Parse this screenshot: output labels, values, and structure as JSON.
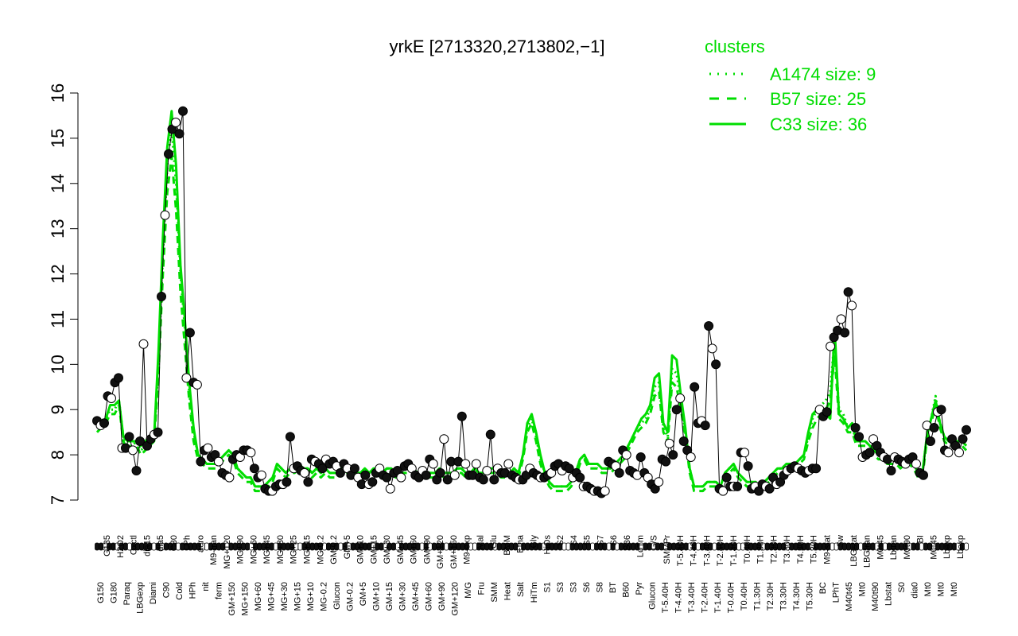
{
  "chart_data": {
    "type": "line",
    "title": "yrkE [2713320,2713802,−1]",
    "xlabel": "",
    "ylabel": "",
    "ylim": [
      7,
      16
    ],
    "yticks": [
      7,
      8,
      9,
      10,
      11,
      12,
      13,
      14,
      15,
      16
    ],
    "grid": false,
    "xtick_labels_row1": [
      "G150",
      "G180",
      "Paraq",
      "LBGexp",
      "Diami",
      "C90",
      "Cold",
      "HPh",
      "nit",
      "ferm",
      "GM+150",
      "MG+150",
      "MG+60",
      "MG+45",
      "MG+30",
      "MG+15",
      "MG+10",
      "MG-0.2",
      "Glucon",
      "GM-0.2",
      "GM+5",
      "GM+10",
      "GM+15",
      "GM+30",
      "GM+45",
      "GM+60",
      "GM+90",
      "GM+120",
      "M/G",
      "Fru",
      "SMM",
      "Heat",
      "Salt",
      "HiTm",
      "S1",
      "S3",
      "S3",
      "S6",
      "S8",
      "BT",
      "B60",
      "Pyr",
      "Glucon",
      "T-5.40H",
      "T-4.40H",
      "T-3.40H",
      "T-2.40H",
      "T-1.40H",
      "T-0.40H",
      "T0.40H",
      "T1.30H",
      "T2.30H",
      "T3.30H",
      "T4.30H",
      "T5.30H",
      "BC",
      "LPhT",
      "M40t45",
      "Mt0",
      "M40t90",
      "Lbstat",
      "S0",
      "dia0",
      "Mt0",
      "Mt0",
      "Mt0"
    ],
    "xtick_labels_row2": [
      "G135",
      "H2O2",
      "Oxctl",
      "dia15",
      "dia5",
      "C30",
      "LPh",
      "aero",
      "M9-tran",
      "MG+120",
      "MG+90",
      "MG+60",
      "MG+45",
      "MG+30",
      "MG+25",
      "MG+15",
      "MG-0.2",
      "GM-0.2",
      "GM+5",
      "GM+10",
      "GM+15",
      "GM+30",
      "GM+45",
      "GM+60",
      "GM+90",
      "GM+120",
      "GM+150",
      "M9-exp",
      "Mal",
      "Glu",
      "BMM",
      "Etha",
      "Gly",
      "HiOs",
      "S2",
      "S4",
      "S5",
      "S7",
      "S6",
      "B36",
      "LoTm",
      "G/S",
      "SMMPr",
      "T-5.40H",
      "T-4.40H",
      "T-3.40H",
      "T-2.40H",
      "T-1.40H",
      "T0.40H",
      "T1.30H",
      "T2.30H",
      "T3.30H",
      "T4.30H",
      "T5.30H",
      "M9-stat",
      "Sw",
      "LBGstat",
      "LBGtran",
      "M0t45",
      "Lbtran",
      "M0t90",
      "BI",
      "M0t45",
      "Lbexp",
      "Lbexp"
    ],
    "legend_title": "clusters",
    "legend_location": "top-right",
    "series": [
      {
        "name": "A1474 size: 9",
        "style": "dotted",
        "color": "#00dd00",
        "y": [
          8.6,
          8.7,
          8.8,
          9.0,
          9.0,
          9.2,
          8.4,
          8.2,
          8.2,
          8.3,
          8.1,
          8.2,
          8.3,
          8.4,
          10.0,
          12.4,
          14.4,
          15.2,
          14.0,
          12.0,
          10.8,
          9.4,
          8.5,
          8.0,
          7.9,
          7.8,
          7.8,
          7.8,
          7.9,
          8.0,
          8.1,
          8.0,
          7.7,
          7.6,
          7.5,
          7.5,
          7.3,
          7.3,
          7.3,
          7.4,
          7.5,
          7.8,
          7.7,
          7.6,
          7.7,
          7.7,
          7.8,
          7.7,
          7.7,
          7.6,
          7.7,
          7.6,
          7.7,
          7.6,
          7.6,
          7.6,
          7.8,
          7.7,
          7.6,
          7.6,
          7.6,
          7.7,
          7.6,
          7.7,
          7.7,
          7.6,
          7.7,
          7.7,
          7.6,
          7.7,
          7.7,
          7.7,
          7.7,
          7.6,
          7.7,
          7.6,
          7.6,
          7.6,
          7.7,
          7.6,
          7.6,
          7.6,
          7.7,
          7.7,
          7.6,
          7.6,
          7.7,
          7.6,
          7.6,
          7.7,
          7.7,
          7.7,
          7.6,
          7.6,
          7.6,
          7.7,
          7.6,
          8.0,
          8.6,
          8.8,
          8.4,
          7.9,
          7.6,
          7.4,
          7.3,
          7.3,
          7.3,
          7.3,
          7.4,
          7.6,
          7.9,
          8.0,
          7.8,
          7.8,
          7.8,
          7.7,
          7.7,
          7.7,
          7.8,
          7.9,
          8.0,
          8.2,
          8.4,
          8.6,
          8.7,
          8.8,
          9.0,
          9.5,
          9.6,
          8.6,
          8.4,
          9.9,
          9.8,
          9.2,
          8.5,
          7.7,
          7.3,
          7.3,
          7.3,
          7.4,
          7.4,
          7.4,
          7.3,
          7.6,
          7.7,
          7.8,
          7.6,
          7.5,
          7.4,
          7.4,
          7.4,
          7.3,
          7.4,
          7.5,
          7.6,
          7.7,
          7.7,
          7.8,
          7.8,
          7.8,
          7.9,
          8.0,
          8.4,
          8.8,
          9.0,
          9.1,
          9.2,
          9.4,
          10.6,
          9.0,
          8.9,
          8.6,
          8.6,
          8.3,
          8.3,
          8.3,
          8.2,
          8.1,
          8.0,
          8.0,
          7.9,
          7.9,
          7.9,
          7.8,
          7.9,
          7.9,
          7.8,
          7.6,
          7.6,
          8.4,
          8.8,
          9.3,
          8.7,
          8.4,
          8.3,
          8.3,
          8.3,
          8.3,
          8.2
        ]
      },
      {
        "name": "B57 size: 25",
        "style": "dashed",
        "color": "#00dd00",
        "y": [
          8.5,
          8.6,
          8.7,
          8.9,
          8.9,
          9.1,
          8.3,
          8.1,
          8.1,
          8.2,
          8.0,
          8.1,
          8.2,
          8.3,
          9.8,
          12.0,
          13.8,
          14.6,
          13.4,
          11.6,
          10.4,
          9.2,
          8.3,
          7.9,
          7.8,
          7.7,
          7.7,
          7.7,
          7.8,
          7.9,
          8.0,
          7.9,
          7.6,
          7.5,
          7.4,
          7.4,
          7.2,
          7.2,
          7.2,
          7.3,
          7.4,
          7.7,
          7.6,
          7.5,
          7.6,
          7.6,
          7.7,
          7.6,
          7.6,
          7.5,
          7.6,
          7.5,
          7.6,
          7.5,
          7.5,
          7.5,
          7.7,
          7.6,
          7.5,
          7.5,
          7.5,
          7.6,
          7.5,
          7.6,
          7.6,
          7.5,
          7.6,
          7.6,
          7.5,
          7.6,
          7.6,
          7.6,
          7.6,
          7.5,
          7.6,
          7.5,
          7.5,
          7.5,
          7.6,
          7.5,
          7.5,
          7.5,
          7.6,
          7.6,
          7.5,
          7.5,
          7.6,
          7.5,
          7.5,
          7.6,
          7.6,
          7.6,
          7.5,
          7.5,
          7.5,
          7.6,
          7.5,
          7.9,
          8.5,
          8.7,
          8.3,
          7.8,
          7.5,
          7.3,
          7.2,
          7.2,
          7.2,
          7.2,
          7.3,
          7.5,
          7.8,
          7.9,
          7.7,
          7.7,
          7.7,
          7.6,
          7.6,
          7.6,
          7.7,
          7.8,
          7.9,
          8.1,
          8.3,
          8.5,
          8.6,
          8.7,
          8.9,
          9.3,
          9.4,
          8.5,
          8.3,
          9.6,
          9.5,
          9.0,
          8.4,
          7.6,
          7.2,
          7.2,
          7.2,
          7.3,
          7.3,
          7.3,
          7.2,
          7.5,
          7.6,
          7.7,
          7.5,
          7.4,
          7.3,
          7.3,
          7.3,
          7.2,
          7.3,
          7.4,
          7.5,
          7.6,
          7.6,
          7.7,
          7.7,
          7.7,
          7.8,
          7.9,
          8.3,
          8.6,
          8.8,
          8.9,
          9.0,
          9.2,
          10.2,
          8.8,
          8.7,
          8.5,
          8.5,
          8.2,
          8.2,
          8.2,
          8.1,
          8.0,
          7.9,
          7.9,
          7.8,
          7.8,
          7.8,
          7.7,
          7.8,
          7.8,
          7.7,
          7.5,
          7.5,
          8.3,
          8.7,
          9.1,
          8.6,
          8.3,
          8.2,
          8.2,
          8.2,
          8.2,
          8.1
        ]
      },
      {
        "name": "C33 size: 36",
        "style": "solid",
        "color": "#00dd00",
        "y": [
          8.6,
          8.7,
          8.8,
          9.1,
          9.1,
          9.2,
          8.4,
          8.3,
          8.3,
          8.3,
          8.2,
          8.3,
          8.4,
          8.4,
          10.3,
          12.8,
          14.8,
          15.6,
          14.4,
          12.2,
          11.0,
          9.6,
          8.6,
          8.0,
          7.9,
          7.8,
          7.8,
          7.8,
          7.9,
          8.0,
          8.1,
          8.0,
          7.7,
          7.6,
          7.5,
          7.5,
          7.3,
          7.3,
          7.3,
          7.4,
          7.5,
          7.8,
          7.7,
          7.6,
          7.7,
          7.7,
          7.8,
          7.7,
          7.7,
          7.6,
          7.7,
          7.6,
          7.7,
          7.6,
          7.6,
          7.6,
          7.8,
          7.7,
          7.6,
          7.6,
          7.6,
          7.7,
          7.6,
          7.7,
          7.7,
          7.6,
          7.7,
          7.7,
          7.6,
          7.7,
          7.7,
          7.7,
          7.7,
          7.6,
          7.7,
          7.6,
          7.6,
          7.6,
          7.7,
          7.6,
          7.6,
          7.6,
          7.7,
          7.7,
          7.6,
          7.6,
          7.7,
          7.6,
          7.6,
          7.7,
          7.7,
          7.7,
          7.6,
          7.6,
          7.6,
          7.7,
          7.6,
          8.0,
          8.7,
          8.9,
          8.5,
          8.0,
          7.6,
          7.4,
          7.3,
          7.3,
          7.3,
          7.3,
          7.4,
          7.6,
          7.9,
          8.0,
          7.8,
          7.8,
          7.8,
          7.7,
          7.7,
          7.7,
          7.8,
          7.9,
          8.0,
          8.2,
          8.4,
          8.6,
          8.8,
          8.9,
          9.1,
          9.7,
          9.8,
          8.7,
          8.5,
          10.2,
          10.1,
          9.3,
          8.6,
          7.7,
          7.3,
          7.3,
          7.3,
          7.4,
          7.4,
          7.4,
          7.3,
          7.6,
          7.7,
          7.8,
          7.6,
          7.5,
          7.4,
          7.4,
          7.4,
          7.3,
          7.4,
          7.5,
          7.6,
          7.7,
          7.7,
          7.8,
          7.8,
          7.8,
          7.9,
          8.0,
          8.5,
          8.9,
          9.0,
          9.0,
          8.9,
          8.8,
          10.8,
          8.9,
          8.8,
          8.6,
          8.7,
          8.3,
          8.3,
          8.3,
          8.2,
          8.1,
          8.0,
          8.0,
          7.9,
          7.9,
          7.9,
          7.8,
          7.9,
          7.9,
          7.8,
          7.6,
          7.6,
          8.4,
          8.8,
          9.2,
          8.7,
          8.4,
          8.3,
          8.3,
          8.3,
          8.3,
          8.2
        ]
      }
    ],
    "points": {
      "note": "",
      "values": [
        8.75,
        8.65,
        8.7,
        9.3,
        9.25,
        9.6,
        9.7,
        8.15,
        8.15,
        8.4,
        8.1,
        7.65,
        8.3,
        10.45,
        8.2,
        8.35,
        8.45,
        8.5,
        11.5,
        13.3,
        14.65,
        15.2,
        15.35,
        15.1,
        15.6,
        9.7,
        10.7,
        9.6,
        9.55,
        7.85,
        8.1,
        8.15,
        7.95,
        8.0,
        7.85,
        7.6,
        7.55,
        7.5,
        7.9,
        8.0,
        7.95,
        8.1,
        8.1,
        8.05,
        7.7,
        7.5,
        7.55,
        7.25,
        7.2,
        7.2,
        7.3,
        7.35,
        7.35,
        7.4,
        8.4,
        7.7,
        7.75,
        7.65,
        7.6,
        7.4,
        7.9,
        7.85,
        7.8,
        7.7,
        7.9,
        7.8,
        7.85,
        7.75,
        7.6,
        7.8,
        7.7,
        7.55,
        7.7,
        7.5,
        7.35,
        7.55,
        7.35,
        7.4,
        7.6,
        7.7,
        7.55,
        7.5,
        7.25,
        7.6,
        7.65,
        7.5,
        7.75,
        7.8,
        7.7,
        7.55,
        7.5,
        7.65,
        7.55,
        7.9,
        7.8,
        7.45,
        7.6,
        8.35,
        7.45,
        7.85,
        7.55,
        7.85,
        8.85,
        7.8,
        7.55,
        7.55,
        7.8,
        7.5,
        7.45,
        7.65,
        8.45,
        7.45,
        7.7,
        7.6,
        7.6,
        7.8,
        7.55,
        7.5,
        7.45,
        7.45,
        7.55,
        7.7,
        7.6,
        7.55,
        7.5,
        7.5,
        7.55,
        7.6,
        7.75,
        7.8,
        7.65,
        7.75,
        7.7,
        7.5,
        7.6,
        7.5,
        7.3,
        7.3,
        7.25,
        7.2,
        7.2,
        7.15,
        7.2,
        7.85,
        7.8,
        7.75,
        7.6,
        8.1,
        8.0,
        7.65,
        7.6,
        7.55,
        7.95,
        7.6,
        7.5,
        7.35,
        7.25,
        7.4,
        7.9,
        7.85,
        8.25,
        8.0,
        9.0,
        9.25,
        8.3,
        8.1,
        7.95,
        9.5,
        8.7,
        8.75,
        8.65,
        10.85,
        10.35,
        10.0,
        7.25,
        7.2,
        7.5,
        7.3,
        7.3,
        7.3,
        8.05,
        8.05,
        7.75,
        7.25,
        7.3,
        7.2,
        7.35,
        7.3,
        7.25,
        7.5,
        7.35,
        7.4,
        7.55,
        7.65,
        7.7,
        7.75,
        7.7,
        7.65,
        7.6,
        7.65,
        7.7,
        7.7,
        9.0,
        8.85,
        8.95,
        10.4,
        10.6,
        10.75,
        11.0,
        10.7,
        11.6,
        11.3,
        8.6,
        8.4,
        7.95,
        8.0,
        8.05,
        8.35,
        8.2,
        8.05,
        7.95,
        7.9,
        7.65,
        7.95,
        7.9,
        7.85,
        7.8,
        7.9,
        7.95,
        7.8,
        7.6,
        7.55,
        8.65,
        8.3,
        8.6,
        8.95,
        9.0,
        8.1,
        8.05,
        8.35,
        8.2,
        8.05,
        8.35,
        8.55
      ]
    }
  }
}
